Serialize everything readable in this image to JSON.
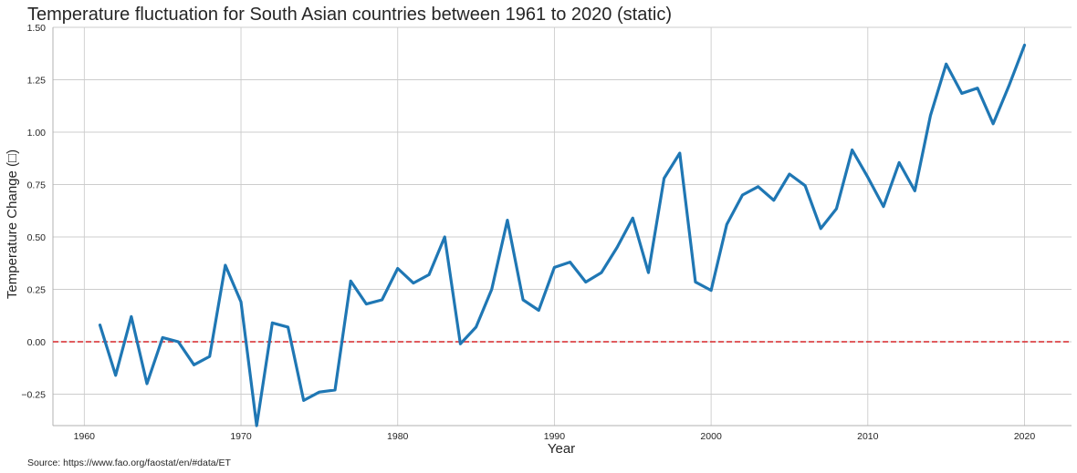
{
  "chart_data": {
    "type": "line",
    "title": "Temperature fluctuation for South Asian countries between 1961 to 2020 (static)",
    "xlabel": "Year",
    "ylabel": "Temperature Change (□)",
    "source": "Source: https://www.fao.org/faostat/en/#data/ET",
    "xlim": [
      1958,
      2023
    ],
    "ylim": [
      -0.4,
      1.5
    ],
    "x_ticks": [
      1960,
      1970,
      1980,
      1990,
      2000,
      2010,
      2020
    ],
    "x_tick_labels": [
      "1960",
      "1970",
      "1980",
      "1990",
      "2000",
      "2010",
      "2020"
    ],
    "y_ticks": [
      -0.25,
      0.0,
      0.25,
      0.5,
      0.75,
      1.0,
      1.25,
      1.5
    ],
    "y_tick_labels": [
      "−0.25",
      "0.00",
      "0.25",
      "0.50",
      "0.75",
      "1.00",
      "1.25",
      "1.50"
    ],
    "grid": true,
    "reference_line": {
      "y": 0,
      "color": "#d62728",
      "style": "dashed"
    },
    "series": [
      {
        "color": "#1f77b4",
        "x": [
          1961,
          1962,
          1963,
          1964,
          1965,
          1966,
          1967,
          1968,
          1969,
          1970,
          1971,
          1972,
          1973,
          1974,
          1975,
          1976,
          1977,
          1978,
          1979,
          1980,
          1981,
          1982,
          1983,
          1984,
          1985,
          1986,
          1987,
          1988,
          1989,
          1990,
          1991,
          1992,
          1993,
          1994,
          1995,
          1996,
          1997,
          1998,
          1999,
          2000,
          2001,
          2002,
          2003,
          2004,
          2005,
          2006,
          2007,
          2008,
          2009,
          2010,
          2011,
          2012,
          2013,
          2014,
          2015,
          2016,
          2017,
          2018,
          2019,
          2020
        ],
        "values": [
          0.08,
          -0.16,
          0.12,
          -0.2,
          0.02,
          0.0,
          -0.11,
          -0.07,
          0.365,
          0.19,
          -0.4,
          0.09,
          0.07,
          -0.28,
          -0.24,
          -0.23,
          0.29,
          0.18,
          0.2,
          0.35,
          0.28,
          0.32,
          0.5,
          -0.01,
          0.07,
          0.25,
          0.58,
          0.2,
          0.15,
          0.355,
          0.38,
          0.285,
          0.33,
          0.45,
          0.59,
          0.33,
          0.78,
          0.9,
          0.285,
          0.245,
          0.56,
          0.7,
          0.74,
          0.675,
          0.8,
          0.745,
          0.54,
          0.635,
          0.915,
          0.785,
          0.645,
          0.855,
          0.72,
          1.08,
          1.325,
          1.185,
          1.21,
          1.04,
          1.22,
          1.415
        ]
      }
    ]
  }
}
